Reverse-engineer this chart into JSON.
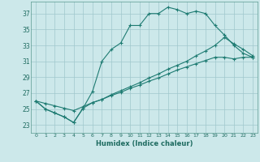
{
  "xlabel": "Humidex (Indice chaleur)",
  "bg_color": "#cce8ea",
  "line_color": "#1e7b72",
  "grid_color": "#a0c8cc",
  "xlim": [
    -0.5,
    23.5
  ],
  "ylim": [
    22.0,
    38.5
  ],
  "xticks": [
    0,
    1,
    2,
    3,
    4,
    5,
    6,
    7,
    8,
    9,
    10,
    11,
    12,
    13,
    14,
    15,
    16,
    17,
    18,
    19,
    20,
    21,
    22,
    23
  ],
  "yticks": [
    23,
    25,
    27,
    29,
    31,
    33,
    35,
    37
  ],
  "line1_x": [
    0,
    1,
    2,
    3,
    4,
    5,
    6,
    7,
    8,
    9,
    10,
    11,
    12,
    13,
    14,
    15,
    16,
    17,
    18,
    19,
    20,
    21,
    22,
    23
  ],
  "line1_y": [
    26.0,
    25.0,
    24.5,
    24.0,
    23.3,
    25.1,
    27.2,
    31.0,
    32.5,
    33.3,
    35.5,
    35.5,
    37.0,
    37.0,
    37.8,
    37.5,
    37.0,
    37.3,
    37.0,
    35.5,
    34.3,
    33.0,
    32.0,
    31.5
  ],
  "line2_x": [
    0,
    1,
    2,
    3,
    4,
    5,
    6,
    7,
    8,
    9,
    10,
    11,
    12,
    13,
    14,
    15,
    16,
    17,
    18,
    19,
    20,
    21,
    22,
    23
  ],
  "line2_y": [
    26.0,
    25.0,
    24.5,
    24.0,
    23.3,
    25.1,
    25.8,
    26.2,
    26.8,
    27.3,
    27.8,
    28.3,
    28.9,
    29.4,
    30.0,
    30.5,
    31.0,
    31.7,
    32.3,
    33.0,
    34.0,
    33.2,
    32.5,
    31.7
  ],
  "line3_x": [
    0,
    1,
    2,
    3,
    4,
    5,
    6,
    7,
    8,
    9,
    10,
    11,
    12,
    13,
    14,
    15,
    16,
    17,
    18,
    19,
    20,
    21,
    22,
    23
  ],
  "line3_y": [
    26.0,
    25.7,
    25.4,
    25.1,
    24.8,
    25.3,
    25.8,
    26.2,
    26.7,
    27.1,
    27.6,
    28.0,
    28.5,
    28.9,
    29.4,
    29.9,
    30.3,
    30.7,
    31.1,
    31.5,
    31.5,
    31.3,
    31.5,
    31.5
  ]
}
